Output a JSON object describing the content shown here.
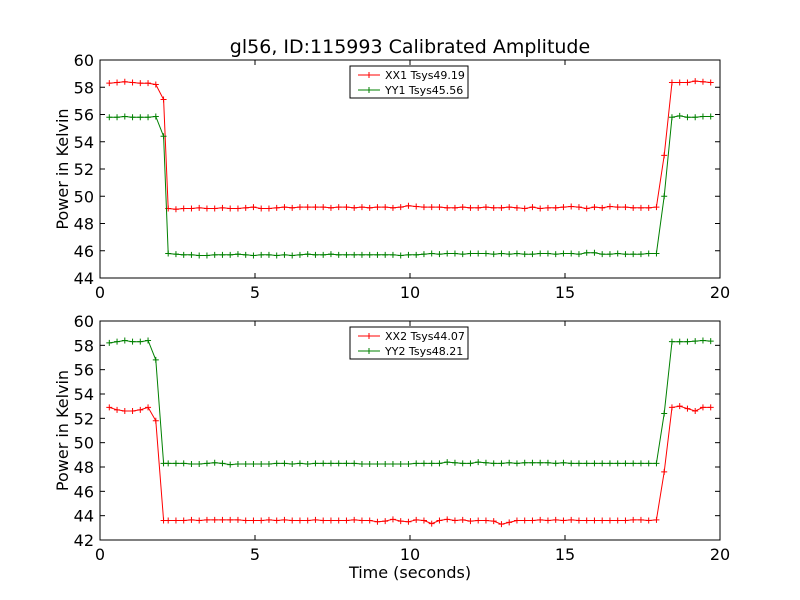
{
  "figure_title": "gl56, ID:115993 Calibrated Amplitude",
  "colors": {
    "xx": "#ff0000",
    "yy": "#008000",
    "axes": "#000000",
    "background": "#ffffff"
  },
  "chart_data": [
    {
      "type": "line",
      "title": "gl56, ID:115993 Calibrated Amplitude",
      "xlabel": "",
      "ylabel": "Power in Kelvin",
      "xlim": [
        0,
        20
      ],
      "ylim": [
        44,
        60
      ],
      "xticks": [
        0,
        5,
        10,
        15,
        20
      ],
      "yticks": [
        44,
        46,
        48,
        50,
        52,
        54,
        56,
        58,
        60
      ],
      "grid": false,
      "legend_position": "top-center",
      "series": [
        {
          "name": "XX1 Tsys49.19",
          "color": "#ff0000",
          "x": [
            0.3,
            0.55,
            0.8,
            1.05,
            1.3,
            1.55,
            1.8,
            2.05,
            2.2,
            2.45,
            2.7,
            2.95,
            3.2,
            3.45,
            3.7,
            3.95,
            4.2,
            4.45,
            4.7,
            4.95,
            5.2,
            5.45,
            5.7,
            5.95,
            6.2,
            6.45,
            6.7,
            6.95,
            7.2,
            7.45,
            7.7,
            7.95,
            8.2,
            8.45,
            8.7,
            8.95,
            9.2,
            9.45,
            9.7,
            9.95,
            10.2,
            10.45,
            10.7,
            10.95,
            11.2,
            11.45,
            11.7,
            11.95,
            12.2,
            12.45,
            12.7,
            12.95,
            13.2,
            13.45,
            13.7,
            13.95,
            14.2,
            14.45,
            14.7,
            14.95,
            15.2,
            15.45,
            15.7,
            15.95,
            16.2,
            16.45,
            16.7,
            16.95,
            17.2,
            17.45,
            17.7,
            17.95,
            18.2,
            18.45,
            18.7,
            18.95,
            19.2,
            19.45,
            19.7
          ],
          "y": [
            58.3,
            58.35,
            58.4,
            58.35,
            58.3,
            58.3,
            58.2,
            57.1,
            49.1,
            49.05,
            49.1,
            49.1,
            49.15,
            49.1,
            49.1,
            49.15,
            49.1,
            49.1,
            49.15,
            49.2,
            49.1,
            49.1,
            49.15,
            49.2,
            49.15,
            49.2,
            49.2,
            49.2,
            49.2,
            49.15,
            49.2,
            49.2,
            49.15,
            49.2,
            49.15,
            49.2,
            49.2,
            49.15,
            49.2,
            49.3,
            49.25,
            49.2,
            49.2,
            49.2,
            49.15,
            49.15,
            49.2,
            49.15,
            49.15,
            49.2,
            49.15,
            49.15,
            49.2,
            49.15,
            49.1,
            49.2,
            49.1,
            49.15,
            49.15,
            49.2,
            49.25,
            49.2,
            49.1,
            49.2,
            49.15,
            49.25,
            49.2,
            49.2,
            49.15,
            49.15,
            49.15,
            49.2,
            53.0,
            58.35,
            58.35,
            58.35,
            58.45,
            58.4,
            58.35
          ]
        },
        {
          "name": "YY1 Tsys45.56",
          "color": "#008000",
          "x": [
            0.3,
            0.55,
            0.8,
            1.05,
            1.3,
            1.55,
            1.8,
            2.05,
            2.2,
            2.45,
            2.7,
            2.95,
            3.2,
            3.45,
            3.7,
            3.95,
            4.2,
            4.45,
            4.7,
            4.95,
            5.2,
            5.45,
            5.7,
            5.95,
            6.2,
            6.45,
            6.7,
            6.95,
            7.2,
            7.45,
            7.7,
            7.95,
            8.2,
            8.45,
            8.7,
            8.95,
            9.2,
            9.45,
            9.7,
            9.95,
            10.2,
            10.45,
            10.7,
            10.95,
            11.2,
            11.45,
            11.7,
            11.95,
            12.2,
            12.45,
            12.7,
            12.95,
            13.2,
            13.45,
            13.7,
            13.95,
            14.2,
            14.45,
            14.7,
            14.95,
            15.2,
            15.45,
            15.7,
            15.95,
            16.2,
            16.45,
            16.7,
            16.95,
            17.2,
            17.45,
            17.7,
            17.95,
            18.2,
            18.45,
            18.7,
            18.95,
            19.2,
            19.45,
            19.7
          ],
          "y": [
            55.8,
            55.8,
            55.85,
            55.8,
            55.8,
            55.8,
            55.85,
            54.4,
            45.8,
            45.75,
            45.7,
            45.7,
            45.65,
            45.65,
            45.7,
            45.7,
            45.7,
            45.75,
            45.7,
            45.65,
            45.7,
            45.7,
            45.65,
            45.7,
            45.65,
            45.7,
            45.75,
            45.7,
            45.7,
            45.75,
            45.7,
            45.7,
            45.7,
            45.7,
            45.7,
            45.7,
            45.7,
            45.7,
            45.65,
            45.7,
            45.7,
            45.75,
            45.8,
            45.75,
            45.8,
            45.8,
            45.75,
            45.8,
            45.8,
            45.8,
            45.75,
            45.8,
            45.75,
            45.8,
            45.75,
            45.75,
            45.8,
            45.8,
            45.75,
            45.8,
            45.8,
            45.75,
            45.85,
            45.85,
            45.75,
            45.75,
            45.8,
            45.75,
            45.75,
            45.75,
            45.8,
            45.8,
            50.0,
            55.8,
            55.9,
            55.8,
            55.8,
            55.85,
            55.85
          ]
        }
      ]
    },
    {
      "type": "line",
      "title": "",
      "xlabel": "Time (seconds)",
      "ylabel": "Power in Kelvin",
      "xlim": [
        0,
        20
      ],
      "ylim": [
        42,
        60
      ],
      "xticks": [
        0,
        5,
        10,
        15,
        20
      ],
      "yticks": [
        42,
        44,
        46,
        48,
        50,
        52,
        54,
        56,
        58,
        60
      ],
      "grid": false,
      "legend_position": "top-center",
      "series": [
        {
          "name": "XX2 Tsys44.07",
          "color": "#ff0000",
          "x": [
            0.3,
            0.55,
            0.8,
            1.05,
            1.3,
            1.55,
            1.8,
            2.05,
            2.2,
            2.45,
            2.7,
            2.95,
            3.2,
            3.45,
            3.7,
            3.95,
            4.2,
            4.45,
            4.7,
            4.95,
            5.2,
            5.45,
            5.7,
            5.95,
            6.2,
            6.45,
            6.7,
            6.95,
            7.2,
            7.45,
            7.7,
            7.95,
            8.2,
            8.45,
            8.7,
            8.95,
            9.2,
            9.45,
            9.7,
            9.95,
            10.2,
            10.45,
            10.7,
            10.95,
            11.2,
            11.45,
            11.7,
            11.95,
            12.2,
            12.45,
            12.7,
            12.95,
            13.2,
            13.45,
            13.7,
            13.95,
            14.2,
            14.45,
            14.7,
            14.95,
            15.2,
            15.45,
            15.7,
            15.95,
            16.2,
            16.45,
            16.7,
            16.95,
            17.2,
            17.45,
            17.7,
            17.95,
            18.2,
            18.45,
            18.7,
            18.95,
            19.2,
            19.45,
            19.7
          ],
          "y": [
            52.9,
            52.7,
            52.6,
            52.6,
            52.7,
            52.9,
            51.8,
            43.6,
            43.6,
            43.6,
            43.6,
            43.65,
            43.6,
            43.65,
            43.65,
            43.65,
            43.65,
            43.65,
            43.6,
            43.6,
            43.6,
            43.65,
            43.6,
            43.65,
            43.6,
            43.6,
            43.6,
            43.65,
            43.6,
            43.6,
            43.6,
            43.6,
            43.65,
            43.6,
            43.6,
            43.5,
            43.55,
            43.7,
            43.55,
            43.5,
            43.65,
            43.6,
            43.35,
            43.6,
            43.7,
            43.6,
            43.65,
            43.55,
            43.6,
            43.6,
            43.55,
            43.3,
            43.45,
            43.6,
            43.6,
            43.6,
            43.65,
            43.6,
            43.65,
            43.6,
            43.65,
            43.6,
            43.6,
            43.6,
            43.6,
            43.6,
            43.6,
            43.6,
            43.65,
            43.65,
            43.6,
            43.65,
            47.6,
            52.9,
            53.0,
            52.8,
            52.6,
            52.9,
            52.9
          ]
        },
        {
          "name": "YY2 Tsys48.21",
          "color": "#008000",
          "x": [
            0.3,
            0.55,
            0.8,
            1.05,
            1.3,
            1.55,
            1.8,
            2.05,
            2.2,
            2.45,
            2.7,
            2.95,
            3.2,
            3.45,
            3.7,
            3.95,
            4.2,
            4.45,
            4.7,
            4.95,
            5.2,
            5.45,
            5.7,
            5.95,
            6.2,
            6.45,
            6.7,
            6.95,
            7.2,
            7.45,
            7.7,
            7.95,
            8.2,
            8.45,
            8.7,
            8.95,
            9.2,
            9.45,
            9.7,
            9.95,
            10.2,
            10.45,
            10.7,
            10.95,
            11.2,
            11.45,
            11.7,
            11.95,
            12.2,
            12.45,
            12.7,
            12.95,
            13.2,
            13.45,
            13.7,
            13.95,
            14.2,
            14.45,
            14.7,
            14.95,
            15.2,
            15.45,
            15.7,
            15.95,
            16.2,
            16.45,
            16.7,
            16.95,
            17.2,
            17.45,
            17.7,
            17.95,
            18.2,
            18.45,
            18.7,
            18.95,
            19.2,
            19.45,
            19.7
          ],
          "y": [
            58.2,
            58.3,
            58.4,
            58.3,
            58.3,
            58.4,
            56.8,
            48.3,
            48.3,
            48.3,
            48.3,
            48.25,
            48.25,
            48.3,
            48.35,
            48.3,
            48.2,
            48.25,
            48.25,
            48.25,
            48.25,
            48.25,
            48.3,
            48.3,
            48.25,
            48.3,
            48.25,
            48.3,
            48.3,
            48.3,
            48.3,
            48.3,
            48.3,
            48.25,
            48.25,
            48.25,
            48.25,
            48.25,
            48.25,
            48.25,
            48.3,
            48.3,
            48.3,
            48.3,
            48.4,
            48.35,
            48.3,
            48.3,
            48.4,
            48.35,
            48.3,
            48.3,
            48.35,
            48.3,
            48.35,
            48.35,
            48.35,
            48.35,
            48.3,
            48.35,
            48.3,
            48.3,
            48.3,
            48.3,
            48.3,
            48.3,
            48.3,
            48.3,
            48.3,
            48.3,
            48.3,
            48.3,
            52.4,
            58.3,
            58.3,
            58.3,
            58.35,
            58.4,
            58.35
          ]
        }
      ]
    }
  ]
}
